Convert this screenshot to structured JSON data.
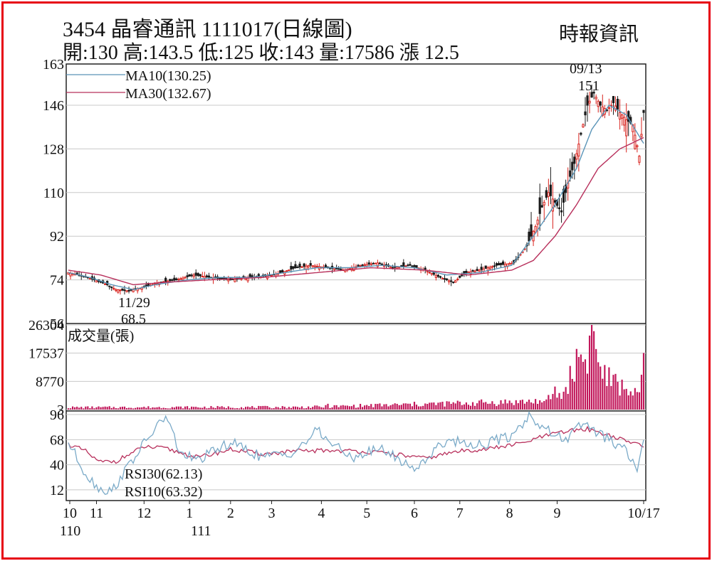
{
  "header": {
    "title": "3454  晶睿通訊 1111017(日線圖)",
    "stats": "開:130 高:143.5 低:125 收:143 量:17586 漲 12.5",
    "source": "時報資訊"
  },
  "price_panel": {
    "yticks": [
      "163",
      "146",
      "128",
      "110",
      "92",
      "74",
      "56"
    ],
    "ma10_label": "MA10(130.25)",
    "ma30_label": "MA30(132.67)",
    "high_date": "09/13",
    "high_value": "151",
    "low_date": "11/29",
    "low_value": "68.5"
  },
  "volume_panel": {
    "yticks": [
      "26304",
      "17537",
      "8770",
      "3"
    ],
    "label": "成交量(張)"
  },
  "rsi_panel": {
    "yticks": [
      "96",
      "68",
      "40",
      "12"
    ],
    "rsi30_label": "RSI30(62.13)",
    "rsi10_label": "RSI10(63.32)"
  },
  "x_axis": {
    "months": [
      "10",
      "11",
      "12",
      "1",
      "2",
      "3",
      "4",
      "5",
      "6",
      "7",
      "8",
      "9",
      "10/17"
    ],
    "years": [
      "110",
      "111"
    ]
  },
  "colors": {
    "border": "#e60012",
    "up": "#d9231e",
    "down": "#1a1a1a",
    "ma10": "#5b95b8",
    "ma30": "#b8305c",
    "volume": "#c2185b",
    "rsi30": "#b8305c",
    "rsi10": "#7aaac8",
    "grid": "#c8c8c8"
  },
  "chart_data": [
    {
      "type": "candlestick",
      "title": "3454  晶睿通訊 1111017(日線圖)",
      "ylim": [
        56,
        163
      ],
      "x_range": [
        "2021-10",
        "2022-10-17"
      ],
      "annotations": [
        {
          "date": "09/13",
          "value": 151,
          "kind": "high"
        },
        {
          "date": "11/29",
          "value": 68.5,
          "kind": "low"
        }
      ],
      "close_path": [
        [
          0,
          77
        ],
        [
          9,
          75
        ],
        [
          18,
          72
        ],
        [
          22,
          70
        ],
        [
          28,
          69.5
        ],
        [
          35,
          71
        ],
        [
          42,
          73
        ],
        [
          50,
          74
        ],
        [
          58,
          76
        ],
        [
          66,
          75
        ],
        [
          75,
          74
        ],
        [
          85,
          75
        ],
        [
          95,
          76
        ],
        [
          105,
          79
        ],
        [
          112,
          80
        ],
        [
          120,
          79
        ],
        [
          128,
          78
        ],
        [
          135,
          80
        ],
        [
          143,
          81
        ],
        [
          150,
          79
        ],
        [
          158,
          80
        ],
        [
          165,
          78
        ],
        [
          172,
          75
        ],
        [
          178,
          73
        ],
        [
          184,
          77
        ],
        [
          190,
          78
        ],
        [
          198,
          80
        ],
        [
          206,
          81
        ],
        [
          212,
          88
        ],
        [
          216,
          96
        ],
        [
          219,
          104
        ],
        [
          222,
          110
        ],
        [
          225,
          106
        ],
        [
          228,
          102
        ],
        [
          231,
          114
        ],
        [
          234,
          122
        ],
        [
          237,
          134
        ],
        [
          240,
          146
        ],
        [
          243,
          151
        ],
        [
          246,
          146
        ],
        [
          249,
          144
        ],
        [
          252,
          147
        ],
        [
          255,
          143
        ],
        [
          258,
          140
        ],
        [
          261,
          138
        ],
        [
          264,
          125
        ],
        [
          266,
          143
        ]
      ],
      "series": [
        {
          "name": "MA10",
          "last": 130.25,
          "values": [
            [
              0,
              77
            ],
            [
              10,
              75
            ],
            [
              20,
              72
            ],
            [
              30,
              70
            ],
            [
              40,
              72
            ],
            [
              55,
              74
            ],
            [
              70,
              75
            ],
            [
              85,
              75
            ],
            [
              100,
              77
            ],
            [
              115,
              79
            ],
            [
              130,
              79
            ],
            [
              145,
              80
            ],
            [
              160,
              79
            ],
            [
              175,
              76
            ],
            [
              190,
              77
            ],
            [
              205,
              80
            ],
            [
              215,
              92
            ],
            [
              225,
              105
            ],
            [
              235,
              120
            ],
            [
              242,
              136
            ],
            [
              250,
              146
            ],
            [
              258,
              142
            ],
            [
              266,
              130.25
            ]
          ]
        },
        {
          "name": "MA30",
          "last": 132.67,
          "values": [
            [
              0,
              78
            ],
            [
              15,
              76
            ],
            [
              30,
              72
            ],
            [
              45,
              73
            ],
            [
              65,
              74
            ],
            [
              90,
              75
            ],
            [
              115,
              77
            ],
            [
              140,
              79
            ],
            [
              165,
              78
            ],
            [
              185,
              76
            ],
            [
              205,
              78
            ],
            [
              215,
              82
            ],
            [
              225,
              92
            ],
            [
              235,
              105
            ],
            [
              245,
              120
            ],
            [
              255,
              128
            ],
            [
              266,
              132.67
            ]
          ]
        }
      ]
    },
    {
      "type": "bar",
      "title": "成交量(張)",
      "ylim": [
        3,
        26304
      ],
      "note": "daily volume; baseline ~800 before August 2022",
      "values": [
        [
          0,
          800
        ],
        [
          110,
          900
        ],
        [
          217,
          3000
        ],
        [
          220,
          2000
        ],
        [
          225,
          6000
        ],
        [
          228,
          4000
        ],
        [
          233,
          12000
        ],
        [
          236,
          18000
        ],
        [
          239,
          16000
        ],
        [
          241,
          20000
        ],
        [
          242,
          26304
        ],
        [
          244,
          17537
        ],
        [
          246,
          13000
        ],
        [
          248,
          12000
        ],
        [
          250,
          10000
        ],
        [
          252,
          9000
        ],
        [
          255,
          7500
        ],
        [
          258,
          7000
        ],
        [
          261,
          6000
        ],
        [
          264,
          4000
        ],
        [
          266,
          17586
        ]
      ]
    },
    {
      "type": "line",
      "title": "RSI",
      "ylim": [
        0,
        100
      ],
      "series": [
        {
          "name": "RSI30",
          "last": 62.13,
          "values": [
            [
              0,
              63
            ],
            [
              8,
              55
            ],
            [
              14,
              43
            ],
            [
              22,
              44
            ],
            [
              35,
              60
            ],
            [
              45,
              58
            ],
            [
              60,
              48
            ],
            [
              75,
              57
            ],
            [
              90,
              52
            ],
            [
              105,
              55
            ],
            [
              120,
              56
            ],
            [
              135,
              55
            ],
            [
              150,
              52
            ],
            [
              165,
              47
            ],
            [
              180,
              55
            ],
            [
              195,
              58
            ],
            [
              210,
              64
            ],
            [
              220,
              72
            ],
            [
              232,
              78
            ],
            [
              240,
              80
            ],
            [
              250,
              73
            ],
            [
              258,
              66
            ],
            [
              266,
              62.13
            ]
          ]
        },
        {
          "name": "RSI10",
          "last": 63.32,
          "values": [
            [
              0,
              65
            ],
            [
              8,
              30
            ],
            [
              14,
              14
            ],
            [
              20,
              10
            ],
            [
              28,
              40
            ],
            [
              40,
              80
            ],
            [
              45,
              94
            ],
            [
              52,
              52
            ],
            [
              60,
              45
            ],
            [
              75,
              65
            ],
            [
              90,
              48
            ],
            [
              105,
              55
            ],
            [
              115,
              78
            ],
            [
              130,
              48
            ],
            [
              145,
              58
            ],
            [
              160,
              35
            ],
            [
              175,
              68
            ],
            [
              190,
              62
            ],
            [
              205,
              72
            ],
            [
              213,
              95
            ],
            [
              218,
              85
            ],
            [
              225,
              72
            ],
            [
              232,
              70
            ],
            [
              238,
              88
            ],
            [
              245,
              75
            ],
            [
              258,
              55
            ],
            [
              263,
              35
            ],
            [
              266,
              63.32
            ]
          ]
        }
      ]
    }
  ]
}
